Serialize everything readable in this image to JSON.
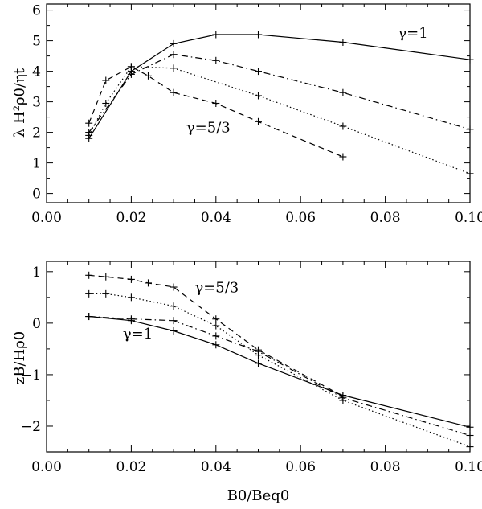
{
  "chart_data": [
    {
      "type": "line",
      "ylabel": "λ H²ρ0/ηt",
      "xlabel": "",
      "xlim": [
        0.0,
        0.1
      ],
      "ylim": [
        -0.3,
        6.2
      ],
      "xticks": [
        0.0,
        0.02,
        0.04,
        0.06,
        0.08,
        0.1
      ],
      "xtick_labels": [
        "0.00",
        "0.02",
        "0.04",
        "0.06",
        "0.08",
        "0.10"
      ],
      "yticks": [
        0,
        1,
        2,
        3,
        4,
        5,
        6
      ],
      "ytick_labels": [
        "0",
        "1",
        "2",
        "3",
        "4",
        "5",
        "6"
      ],
      "grid": false,
      "annotations": [
        {
          "text": "γ=1",
          "x": 0.083,
          "y": 5.1
        },
        {
          "text": "γ=5/3",
          "x": 0.033,
          "y": 2.0
        }
      ],
      "series": [
        {
          "style": "solid",
          "x": [
            0.01,
            0.02,
            0.03,
            0.04,
            0.05,
            0.07,
            0.1
          ],
          "y": [
            1.8,
            4.0,
            4.9,
            5.2,
            5.2,
            4.95,
            4.38
          ]
        },
        {
          "style": "dashdot",
          "x": [
            0.01,
            0.02,
            0.03,
            0.04,
            0.05,
            0.07,
            0.1
          ],
          "y": [
            2.0,
            3.9,
            4.55,
            4.35,
            4.0,
            3.3,
            2.1
          ]
        },
        {
          "style": "dotted",
          "x": [
            0.01,
            0.014,
            0.02,
            0.03,
            0.05,
            0.07,
            0.1
          ],
          "y": [
            1.9,
            2.95,
            4.15,
            4.1,
            3.2,
            2.2,
            0.65
          ]
        },
        {
          "style": "dashed",
          "x": [
            0.01,
            0.014,
            0.02,
            0.024,
            0.03,
            0.04,
            0.05,
            0.07
          ],
          "y": [
            2.3,
            3.7,
            4.15,
            3.85,
            3.3,
            2.95,
            2.35,
            1.2
          ]
        }
      ]
    },
    {
      "type": "line",
      "ylabel": "zB/Hρ0",
      "xlabel": "B0/Beq0",
      "xlim": [
        0.0,
        0.1
      ],
      "ylim": [
        -2.5,
        1.2
      ],
      "xticks": [
        0.0,
        0.02,
        0.04,
        0.06,
        0.08,
        0.1
      ],
      "xtick_labels": [
        "0.00",
        "0.02",
        "0.04",
        "0.06",
        "0.08",
        "0.10"
      ],
      "yticks": [
        -2,
        -1,
        0,
        1
      ],
      "ytick_labels": [
        "−2",
        "−1",
        "0",
        "1"
      ],
      "grid": false,
      "annotations": [
        {
          "text": "γ=5/3",
          "x": 0.035,
          "y": 0.6
        },
        {
          "text": "γ=1",
          "x": 0.018,
          "y": -0.3
        }
      ],
      "series": [
        {
          "style": "solid",
          "x": [
            0.01,
            0.02,
            0.03,
            0.04,
            0.05,
            0.07,
            0.1
          ],
          "y": [
            0.13,
            0.05,
            -0.15,
            -0.42,
            -0.78,
            -1.4,
            -2.02
          ]
        },
        {
          "style": "dashdot",
          "x": [
            0.01,
            0.02,
            0.03,
            0.04,
            0.05,
            0.07,
            0.1
          ],
          "y": [
            0.13,
            0.08,
            0.05,
            -0.25,
            -0.55,
            -1.45,
            -2.18
          ]
        },
        {
          "style": "dotted",
          "x": [
            0.01,
            0.014,
            0.02,
            0.03,
            0.04,
            0.05,
            0.07,
            0.1
          ],
          "y": [
            0.57,
            0.57,
            0.5,
            0.33,
            -0.05,
            -0.62,
            -1.5,
            -2.4
          ]
        },
        {
          "style": "dashed",
          "x": [
            0.01,
            0.014,
            0.02,
            0.024,
            0.03,
            0.04,
            0.05,
            0.07
          ],
          "y": [
            0.93,
            0.9,
            0.85,
            0.78,
            0.7,
            0.08,
            -0.52,
            -1.42
          ]
        }
      ]
    }
  ]
}
